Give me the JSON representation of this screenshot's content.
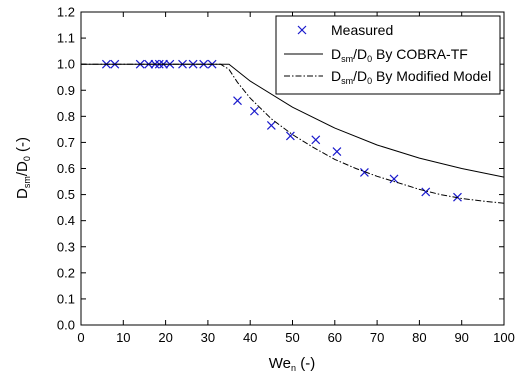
{
  "chart_data": {
    "type": "scatter",
    "xlabel": {
      "main": "We",
      "sub": "n",
      "suffix": " (-)"
    },
    "ylabel": {
      "main": "D",
      "sub1": "sm",
      "mid": "/D",
      "sub2": "0",
      "suffix": " (-)"
    },
    "xlim": [
      0,
      100
    ],
    "ylim": [
      0.0,
      1.2
    ],
    "xticks": [
      "0",
      "10",
      "20",
      "30",
      "40",
      "50",
      "60",
      "70",
      "80",
      "90",
      "100"
    ],
    "yticks": [
      "0.0",
      "0.1",
      "0.2",
      "0.3",
      "0.4",
      "0.5",
      "0.6",
      "0.7",
      "0.8",
      "0.9",
      "1.0",
      "1.1",
      "1.2"
    ],
    "grid": false,
    "legend_position": "top-right",
    "legend": [
      {
        "kind": "marker",
        "text": "Measured"
      },
      {
        "kind": "solid",
        "main": "D",
        "sub1": "sm",
        "mid": "/D",
        "sub2": "0",
        "suffix": " By COBRA-TF"
      },
      {
        "kind": "dashdot",
        "main": "D",
        "sub1": "sm",
        "mid": "/D",
        "sub2": "0",
        "suffix": " By Modified Model"
      }
    ],
    "series": [
      {
        "kind": "marker",
        "color": "#1a1acc",
        "points": [
          [
            6,
            1.0
          ],
          [
            8,
            1.0
          ],
          [
            14,
            1.0
          ],
          [
            16,
            1.0
          ],
          [
            17.5,
            1.0
          ],
          [
            18.5,
            1.0
          ],
          [
            19.5,
            1.0
          ],
          [
            21,
            1.0
          ],
          [
            24,
            1.0
          ],
          [
            26.5,
            1.0
          ],
          [
            29,
            1.0
          ],
          [
            31,
            1.0
          ],
          [
            37,
            0.86
          ],
          [
            41,
            0.82
          ],
          [
            45,
            0.765
          ],
          [
            49.5,
            0.725
          ],
          [
            55.5,
            0.71
          ],
          [
            60.5,
            0.665
          ],
          [
            67,
            0.585
          ],
          [
            74,
            0.56
          ],
          [
            81.5,
            0.51
          ],
          [
            89,
            0.49
          ]
        ]
      },
      {
        "kind": "solid",
        "color": "#000000",
        "points": [
          [
            0,
            1.0
          ],
          [
            30,
            1.0
          ],
          [
            35,
            1.0
          ],
          [
            40,
            0.935
          ],
          [
            50,
            0.835
          ],
          [
            60,
            0.755
          ],
          [
            70,
            0.69
          ],
          [
            80,
            0.64
          ],
          [
            90,
            0.6
          ],
          [
            100,
            0.567
          ]
        ]
      },
      {
        "kind": "dashdot",
        "color": "#000000",
        "points": [
          [
            0,
            1.0
          ],
          [
            33,
            1.0
          ],
          [
            35,
            0.98
          ],
          [
            37,
            0.93
          ],
          [
            40,
            0.87
          ],
          [
            45,
            0.79
          ],
          [
            50,
            0.73
          ],
          [
            55,
            0.68
          ],
          [
            60,
            0.635
          ],
          [
            65,
            0.6
          ],
          [
            70,
            0.57
          ],
          [
            75,
            0.545
          ],
          [
            80,
            0.52
          ],
          [
            85,
            0.5
          ],
          [
            90,
            0.485
          ],
          [
            95,
            0.475
          ],
          [
            100,
            0.467
          ]
        ]
      }
    ]
  }
}
